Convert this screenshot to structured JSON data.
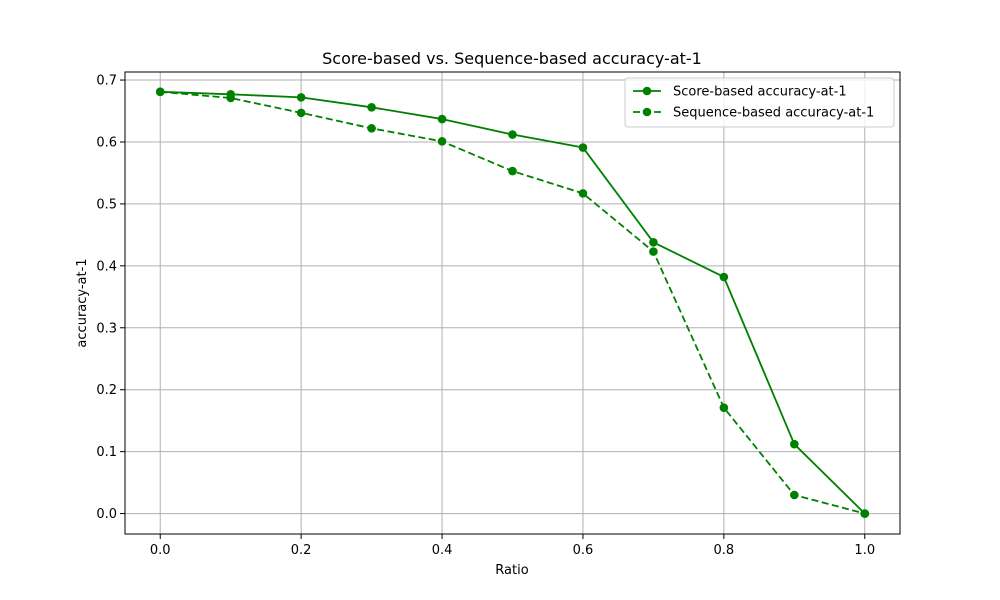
{
  "chart_data": {
    "type": "line",
    "title": "Score-based vs. Sequence-based accuracy-at-1",
    "xlabel": "Ratio",
    "ylabel": "accuracy-at-1",
    "x": [
      0.0,
      0.1,
      0.2,
      0.3,
      0.4,
      0.5,
      0.6,
      0.7,
      0.8,
      0.9,
      1.0
    ],
    "xlim": [
      -0.05,
      1.05
    ],
    "ylim": [
      -0.033,
      0.713
    ],
    "xticks": [
      0.0,
      0.2,
      0.4,
      0.6,
      0.8,
      1.0
    ],
    "xtick_labels": [
      "0.0",
      "0.2",
      "0.4",
      "0.6",
      "0.8",
      "1.0"
    ],
    "yticks": [
      0.0,
      0.1,
      0.2,
      0.3,
      0.4,
      0.5,
      0.6,
      0.7
    ],
    "ytick_labels": [
      "0.0",
      "0.1",
      "0.2",
      "0.3",
      "0.4",
      "0.5",
      "0.6",
      "0.7"
    ],
    "grid": true,
    "legend_position": "top-right",
    "series": [
      {
        "name": "Score-based accuracy-at-1",
        "color": "#008000",
        "line_style": "solid",
        "marker": "circle",
        "values": [
          0.681,
          0.677,
          0.672,
          0.656,
          0.637,
          0.612,
          0.591,
          0.438,
          0.382,
          0.112,
          0.0
        ]
      },
      {
        "name": "Sequence-based accuracy-at-1",
        "color": "#008000",
        "line_style": "dashed",
        "marker": "circle",
        "values": [
          0.681,
          0.671,
          0.647,
          0.622,
          0.601,
          0.553,
          0.517,
          0.423,
          0.171,
          0.03,
          0.0
        ]
      }
    ]
  }
}
